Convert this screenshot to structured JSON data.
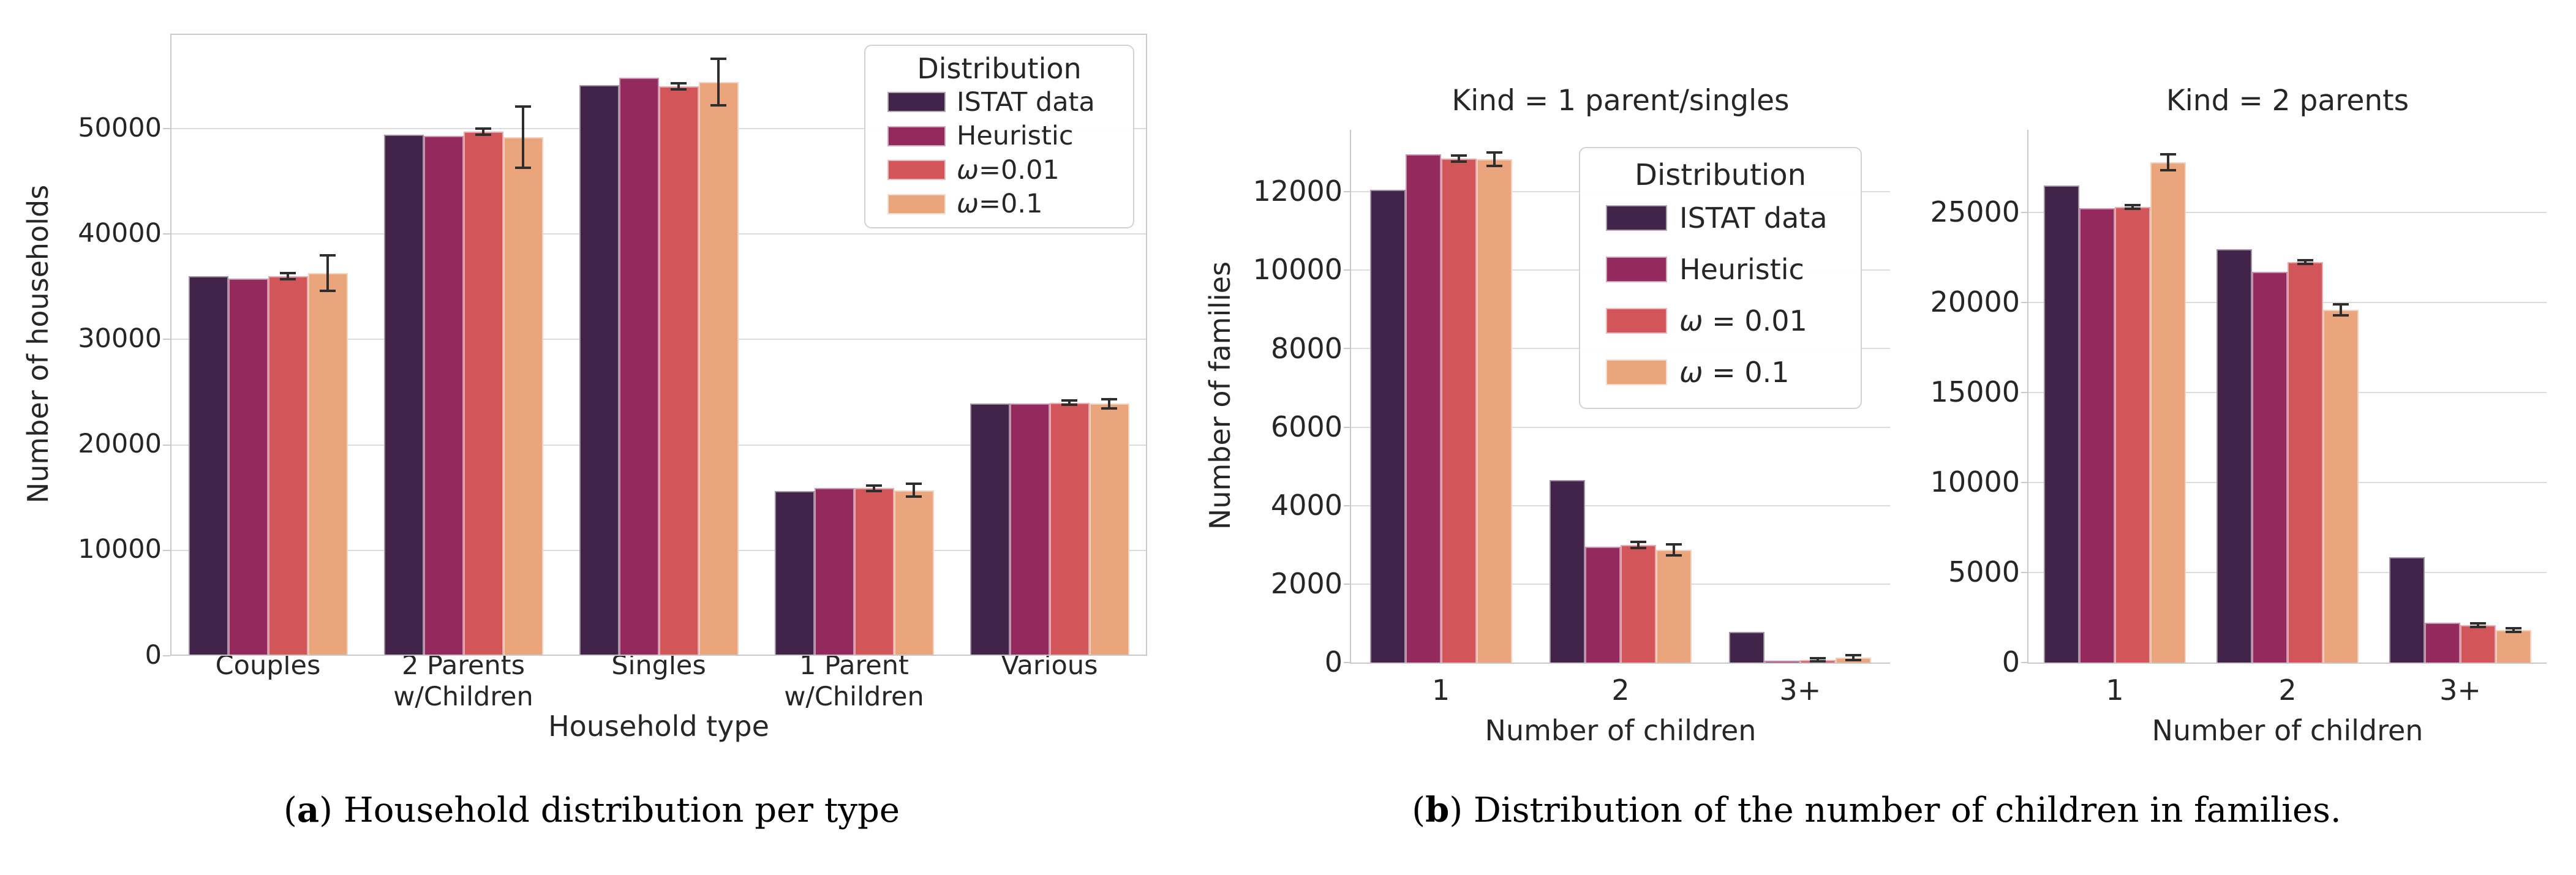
{
  "figure": {
    "captions": {
      "a": {
        "paren_open": "(",
        "letter": "a",
        "paren_close": ")",
        "text": "Household distribution per type"
      },
      "b": {
        "paren_open": "(",
        "letter": "b",
        "paren_close": ")",
        "text": "Distribution of the number of children in families."
      }
    }
  },
  "colors": {
    "series": [
      "#42234a",
      "#94295e",
      "#d2555a",
      "#eaa57d"
    ],
    "grid": "#dcdcdc",
    "spine": "#c9c9c9",
    "error_bar": "#2e2e2e",
    "text": "#262626"
  },
  "chart_data": [
    {
      "id": "a",
      "type": "bar",
      "title": "",
      "xlabel": "Household type",
      "ylabel": "Number of households",
      "categories": [
        "Couples",
        "2 Parents\nw/Children",
        "Singles",
        "1 Parent\nw/Children",
        "Various"
      ],
      "series": [
        {
          "name": "ISTAT data",
          "color": "#42234a",
          "values": [
            36000,
            49400,
            54100,
            15600,
            23900
          ],
          "errors": null
        },
        {
          "name": "Heuristic",
          "color": "#94295e",
          "values": [
            35800,
            49300,
            54800,
            15900,
            23900
          ],
          "errors": null
        },
        {
          "name": "ω=0.01",
          "color": "#d2555a",
          "values": [
            36000,
            49700,
            54000,
            15900,
            24000
          ],
          "errors": [
            300,
            300,
            300,
            250,
            200
          ]
        },
        {
          "name": "ω=0.1",
          "color": "#eaa57d",
          "values": [
            36300,
            49200,
            54400,
            15700,
            23900
          ],
          "errors": [
            1700,
            2900,
            2200,
            600,
            450
          ]
        }
      ],
      "ylim": [
        0,
        59000
      ],
      "yticks": [
        0,
        10000,
        20000,
        30000,
        40000,
        50000
      ],
      "grid": true,
      "legend": {
        "title": "Distribution",
        "position": "upper right"
      }
    },
    {
      "id": "b1",
      "type": "bar",
      "title": "Kind = 1 parent/singles",
      "xlabel": "Number of children",
      "ylabel": "Number of families",
      "categories": [
        "1",
        "2",
        "3+"
      ],
      "series": [
        {
          "name": "ISTAT data",
          "color": "#42234a",
          "values": [
            12050,
            4650,
            780
          ],
          "errors": null
        },
        {
          "name": "Heuristic",
          "color": "#94295e",
          "values": [
            12950,
            2950,
            40
          ],
          "errors": null
        },
        {
          "name": "ω = 0.01",
          "color": "#d2555a",
          "values": [
            12850,
            3000,
            70
          ],
          "errors": [
            80,
            80,
            40
          ]
        },
        {
          "name": "ω = 0.1",
          "color": "#eaa57d",
          "values": [
            12830,
            2870,
            120
          ],
          "errors": [
            170,
            140,
            60
          ]
        }
      ],
      "ylim": [
        0,
        13580
      ],
      "yticks": [
        0,
        2000,
        4000,
        6000,
        8000,
        10000,
        12000
      ],
      "grid": true,
      "legend": {
        "title": "Distribution",
        "position": "upper right"
      }
    },
    {
      "id": "b2",
      "type": "bar",
      "title": "Kind = 2 parents",
      "xlabel": "Number of children",
      "ylabel": null,
      "categories": [
        "1",
        "2",
        "3+"
      ],
      "series": [
        {
          "name": "ISTAT data",
          "color": "#42234a",
          "values": [
            26500,
            22950,
            5850
          ],
          "errors": null
        },
        {
          "name": "Heuristic",
          "color": "#94295e",
          "values": [
            25250,
            21700,
            2200
          ],
          "errors": null
        },
        {
          "name": "ω = 0.01",
          "color": "#d2555a",
          "values": [
            25300,
            22250,
            2080
          ],
          "errors": [
            100,
            100,
            90
          ]
        },
        {
          "name": "ω = 0.1",
          "color": "#eaa57d",
          "values": [
            27800,
            19600,
            1800
          ],
          "errors": [
            450,
            320,
            90
          ]
        }
      ],
      "ylim": [
        0,
        29600
      ],
      "yticks": [
        0,
        5000,
        10000,
        15000,
        20000,
        25000
      ],
      "grid": true,
      "legend": null
    }
  ]
}
